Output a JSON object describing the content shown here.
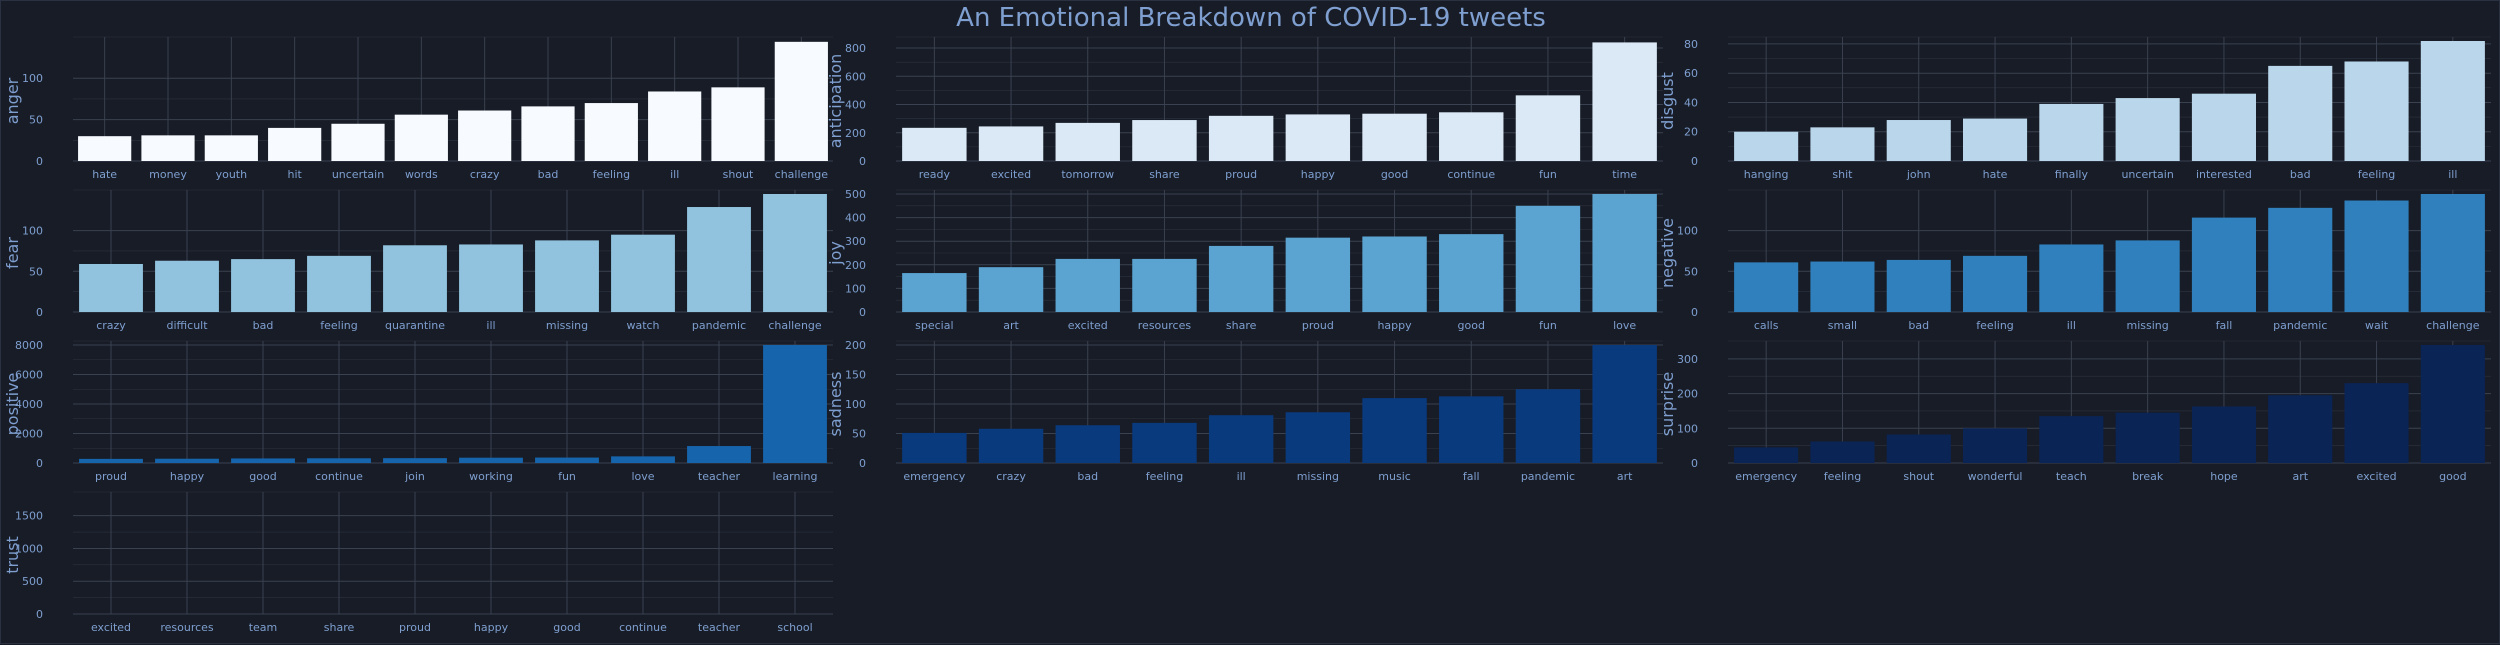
{
  "chart_data": {
    "title": "An Emotional Breakdown of COVID-19 tweets",
    "type": "bar",
    "colors": {
      "background": "#171c26",
      "grid": "#3a4150",
      "text": "#7f9fd0"
    },
    "subplots": [
      {
        "type": "bar",
        "ylabel": "anger",
        "color": "#f7fbff",
        "ylim": [
          0,
          145
        ],
        "yticks": [
          0,
          50,
          100
        ],
        "categories": [
          "hate",
          "money",
          "youth",
          "hit",
          "uncertain",
          "words",
          "crazy",
          "bad",
          "feeling",
          "ill",
          "shout",
          "challenge"
        ],
        "values": [
          30,
          31,
          31,
          40,
          45,
          56,
          61,
          66,
          70,
          84,
          89,
          144
        ]
      },
      {
        "type": "bar",
        "ylabel": "anticipation",
        "color": "#dbe9f6",
        "ylim": [
          0,
          850
        ],
        "yticks": [
          0,
          200,
          400,
          600,
          800
        ],
        "categories": [
          "ready",
          "excited",
          "tomorrow",
          "share",
          "proud",
          "happy",
          "good",
          "continue",
          "fun",
          "time"
        ],
        "values": [
          235,
          245,
          270,
          290,
          320,
          330,
          335,
          345,
          465,
          840
        ]
      },
      {
        "type": "bar",
        "ylabel": "disgust",
        "color": "#bad6eb",
        "ylim": [
          0,
          82
        ],
        "yticks": [
          0,
          20,
          40,
          60,
          80
        ],
        "categories": [
          "hanging",
          "shit",
          "john",
          "hate",
          "finally",
          "uncertain",
          "interested",
          "bad",
          "feeling",
          "ill"
        ],
        "values": [
          20,
          23,
          28,
          29,
          39,
          43,
          46,
          65,
          68,
          82
        ]
      },
      {
        "type": "bar",
        "ylabel": "fear",
        "color": "#91c3de",
        "ylim": [
          0,
          145
        ],
        "yticks": [
          0,
          50,
          100
        ],
        "categories": [
          "crazy",
          "difficult",
          "bad",
          "feeling",
          "quarantine",
          "ill",
          "missing",
          "watch",
          "pandemic",
          "challenge"
        ],
        "values": [
          59,
          63,
          65,
          69,
          82,
          83,
          88,
          95,
          129,
          145
        ]
      },
      {
        "type": "bar",
        "ylabel": "joy",
        "color": "#5ba3d0",
        "ylim": [
          0,
          500
        ],
        "yticks": [
          0,
          100,
          200,
          300,
          400,
          500
        ],
        "categories": [
          "special",
          "art",
          "excited",
          "resources",
          "share",
          "proud",
          "happy",
          "good",
          "fun",
          "love"
        ],
        "values": [
          165,
          190,
          225,
          225,
          280,
          315,
          320,
          330,
          450,
          500
        ]
      },
      {
        "type": "bar",
        "ylabel": "negative",
        "color": "#3080bd",
        "ylim": [
          0,
          145
        ],
        "yticks": [
          0,
          50,
          100
        ],
        "categories": [
          "calls",
          "small",
          "bad",
          "feeling",
          "ill",
          "missing",
          "fall",
          "pandemic",
          "wait",
          "challenge"
        ],
        "values": [
          61,
          62,
          64,
          69,
          83,
          88,
          116,
          128,
          137,
          145
        ]
      },
      {
        "type": "bar",
        "ylabel": "positive",
        "color": "#1664ab",
        "ylim": [
          0,
          8000
        ],
        "yticks": [
          0,
          2000,
          4000,
          6000,
          8000
        ],
        "categories": [
          "proud",
          "happy",
          "good",
          "continue",
          "join",
          "working",
          "fun",
          "love",
          "teacher",
          "learning"
        ],
        "values": [
          280,
          290,
          310,
          320,
          330,
          360,
          370,
          450,
          1150,
          8000
        ]
      },
      {
        "type": "bar",
        "ylabel": "sadness",
        "color": "#0a3a7e",
        "ylim": [
          0,
          200
        ],
        "yticks": [
          0,
          50,
          100,
          150,
          200
        ],
        "categories": [
          "emergency",
          "crazy",
          "bad",
          "feeling",
          "ill",
          "missing",
          "music",
          "fall",
          "pandemic",
          "art"
        ],
        "values": [
          51,
          58,
          64,
          68,
          81,
          86,
          110,
          113,
          125,
          200
        ]
      },
      {
        "type": "bar",
        "ylabel": "surprise",
        "color": "#0b2456",
        "ylim": [
          0,
          340
        ],
        "yticks": [
          0,
          100,
          200,
          300
        ],
        "categories": [
          "emergency",
          "feeling",
          "shout",
          "wonderful",
          "teach",
          "break",
          "hope",
          "art",
          "excited",
          "good"
        ],
        "values": [
          45,
          62,
          82,
          100,
          135,
          145,
          163,
          195,
          230,
          340
        ]
      },
      {
        "type": "bar",
        "ylabel": "trust",
        "color": "#08306b",
        "ylim": [
          0,
          1800
        ],
        "yticks": [
          0,
          500,
          1000,
          1500
        ],
        "categories": [
          "excited",
          "resources",
          "team",
          "share",
          "proud",
          "happy",
          "good",
          "continue",
          "teacher",
          "school"
        ],
        "values": [
          0,
          0,
          0,
          0,
          0,
          0,
          0,
          0,
          0,
          0
        ]
      }
    ]
  }
}
